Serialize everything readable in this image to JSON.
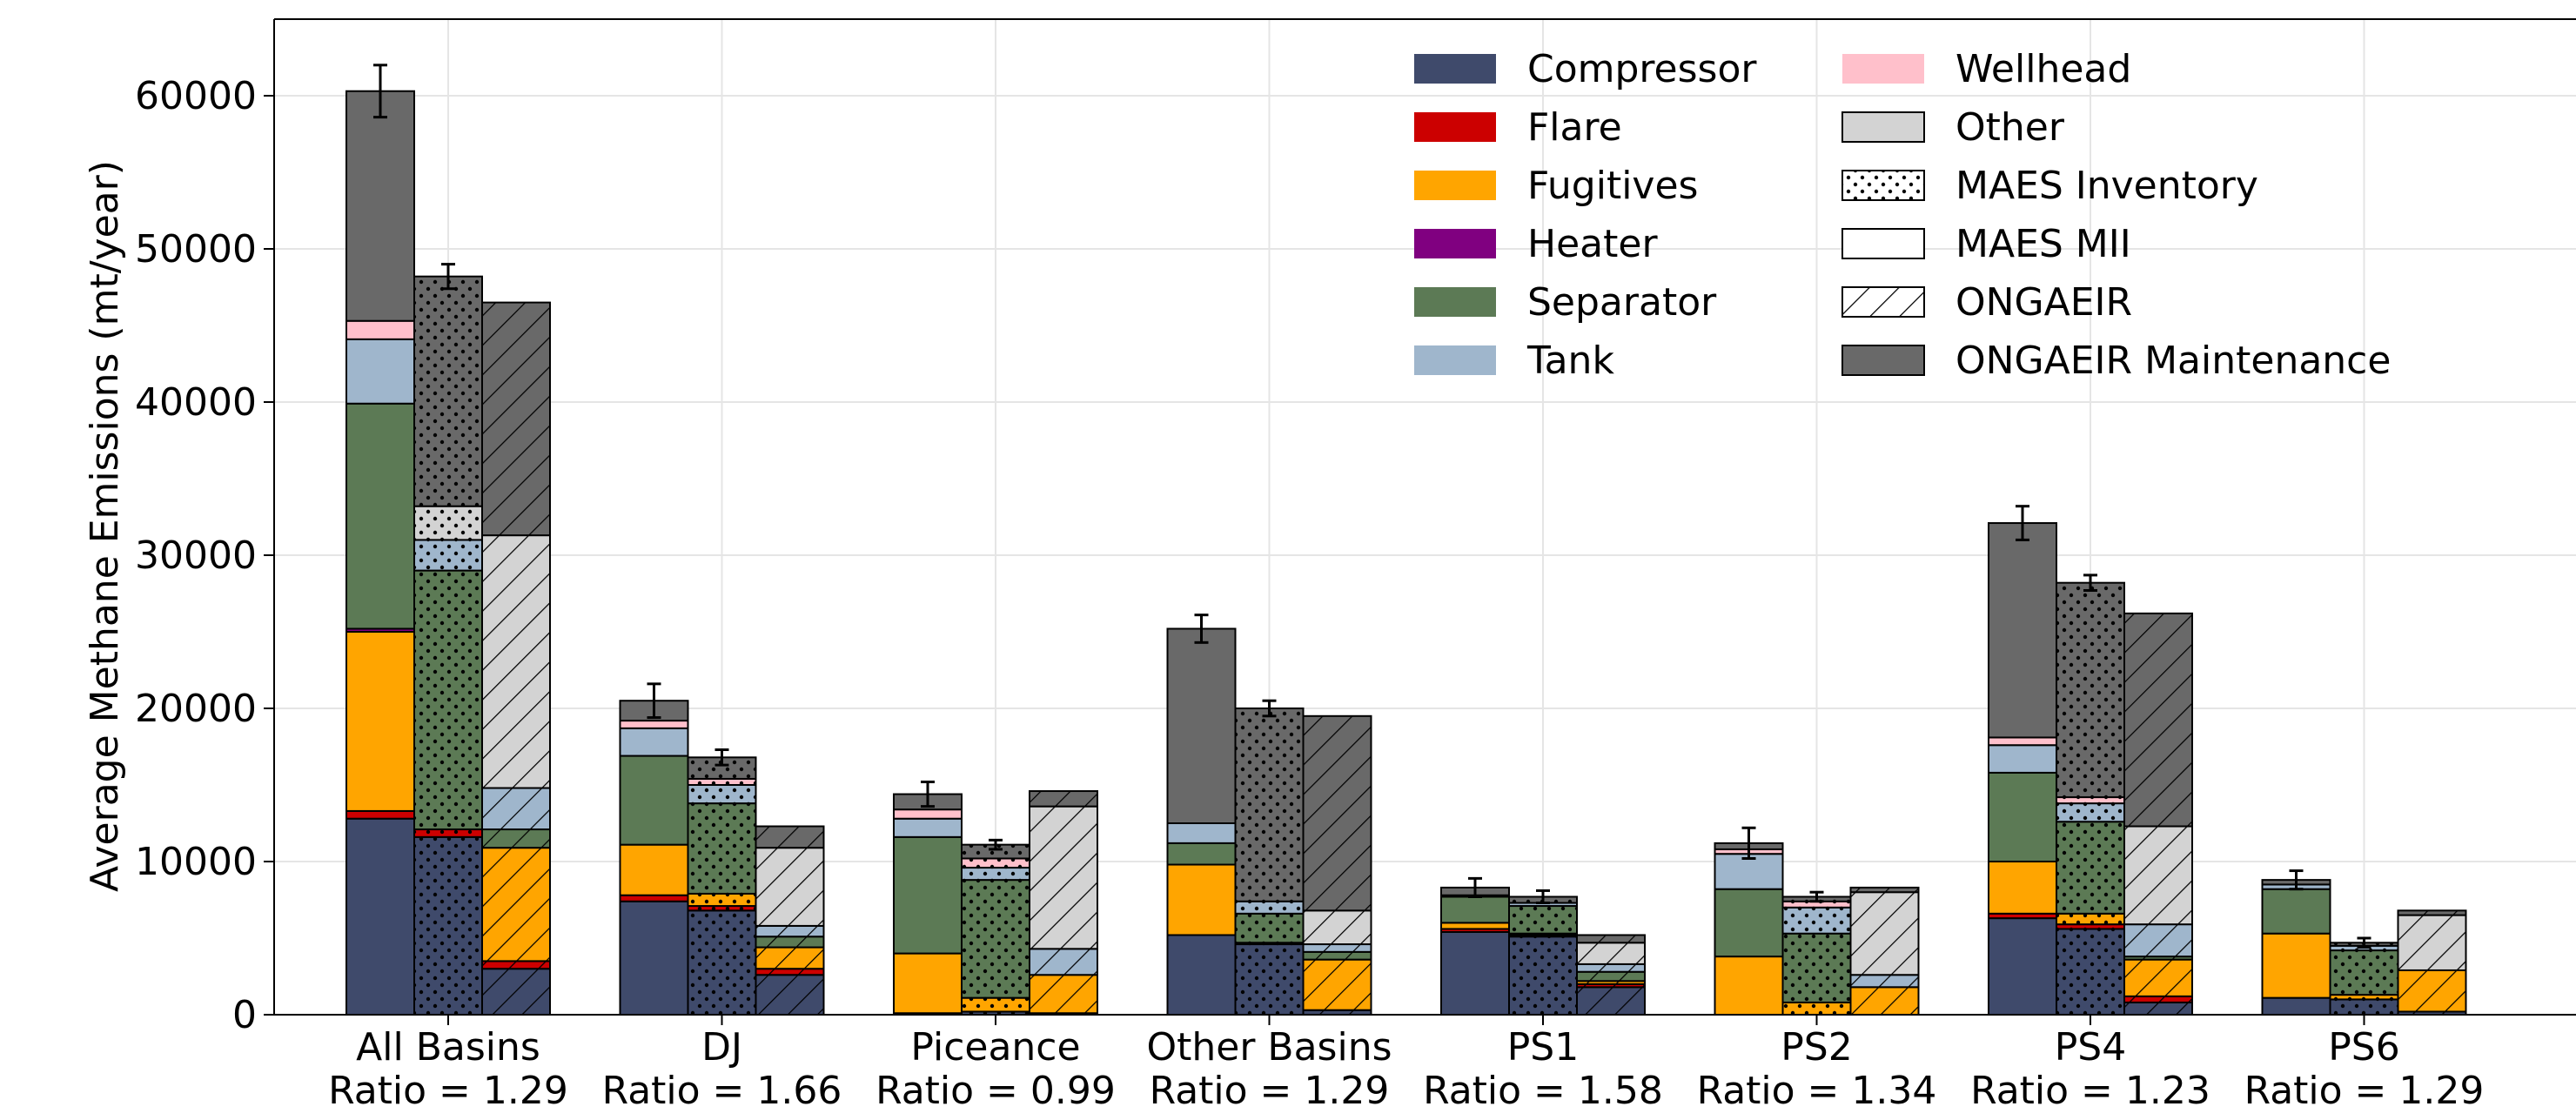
{
  "chart_data": {
    "type": "bar",
    "variant": "grouped-stacked",
    "ylabel": "Average Methane Emissions (mt/year)",
    "ylim": [
      0,
      65000
    ],
    "yticks": [
      0,
      10000,
      20000,
      30000,
      40000,
      50000,
      60000
    ],
    "grid": true,
    "legend_position": "top-right",
    "categories": [
      {
        "name": "All Basins",
        "ratio": "Ratio = 1.29"
      },
      {
        "name": "DJ",
        "ratio": "Ratio = 1.66"
      },
      {
        "name": "Piceance",
        "ratio": "Ratio = 0.99"
      },
      {
        "name": "Other Basins",
        "ratio": "Ratio = 1.29"
      },
      {
        "name": "PS1",
        "ratio": "Ratio = 1.58"
      },
      {
        "name": "PS2",
        "ratio": "Ratio = 1.34"
      },
      {
        "name": "PS4",
        "ratio": "Ratio = 1.23"
      },
      {
        "name": "PS6",
        "ratio": "Ratio = 1.29"
      }
    ],
    "equipment": [
      {
        "name": "Compressor",
        "color": "#3f4a6b"
      },
      {
        "name": "Flare",
        "color": "#cc0000"
      },
      {
        "name": "Fugitives",
        "color": "#ffa500"
      },
      {
        "name": "Heater",
        "color": "#800080"
      },
      {
        "name": "Separator",
        "color": "#5c7a55"
      },
      {
        "name": "Tank",
        "color": "#9fb6cc"
      },
      {
        "name": "Wellhead",
        "color": "#ffc0cb"
      },
      {
        "name": "Other",
        "color": "#d3d3d3"
      }
    ],
    "sources": [
      {
        "name": "MAES Inventory",
        "pattern": "dots",
        "total_color": "#696969"
      },
      {
        "name": "MAES MII",
        "pattern": "none",
        "total_color": "#696969"
      },
      {
        "name": "ONGAEIR",
        "pattern": "hatch",
        "total_color": "#696969"
      }
    ],
    "total_legend": "ONGAEIR Maintenance",
    "bars": [
      [
        {
          "source": "MAES MII",
          "values": [
            12800,
            500,
            11700,
            200,
            14700,
            4200,
            1200,
            0
          ],
          "top": 15000,
          "err": 1700
        },
        {
          "source": "MAES Inventory",
          "values": [
            11600,
            500,
            0,
            0,
            16900,
            2000,
            0,
            2200
          ],
          "top": 15000,
          "err": 800
        },
        {
          "source": "ONGAEIR",
          "values": [
            3000,
            500,
            7400,
            0,
            1200,
            2700,
            0,
            16500
          ],
          "top": 15200,
          "err": 0
        }
      ],
      [
        {
          "source": "MAES MII",
          "values": [
            7400,
            400,
            3300,
            0,
            5800,
            1800,
            500,
            0
          ],
          "top": 1300,
          "err": 1100
        },
        {
          "source": "MAES Inventory",
          "values": [
            6800,
            300,
            800,
            0,
            5900,
            1200,
            400,
            0
          ],
          "top": 1400,
          "err": 500
        },
        {
          "source": "ONGAEIR",
          "values": [
            2600,
            400,
            1400,
            0,
            700,
            700,
            0,
            5100
          ],
          "top": 1400,
          "err": 0
        }
      ],
      [
        {
          "source": "MAES MII",
          "values": [
            100,
            0,
            3900,
            0,
            7600,
            1200,
            600,
            0
          ],
          "top": 1000,
          "err": 800
        },
        {
          "source": "MAES Inventory",
          "values": [
            200,
            0,
            900,
            0,
            7700,
            800,
            600,
            0
          ],
          "top": 900,
          "err": 300
        },
        {
          "source": "ONGAEIR",
          "values": [
            100,
            0,
            2500,
            0,
            0,
            1700,
            0,
            9300
          ],
          "top": 1000,
          "err": 0
        }
      ],
      [
        {
          "source": "MAES MII",
          "values": [
            5200,
            0,
            4600,
            0,
            1400,
            1300,
            0,
            0
          ],
          "top": 12700,
          "err": 900
        },
        {
          "source": "MAES Inventory",
          "values": [
            4600,
            100,
            0,
            0,
            1900,
            800,
            0,
            0
          ],
          "top": 12600,
          "err": 500
        },
        {
          "source": "ONGAEIR",
          "values": [
            300,
            0,
            3300,
            0,
            500,
            500,
            0,
            2200
          ],
          "top": 12700,
          "err": 0
        }
      ],
      [
        {
          "source": "MAES MII",
          "values": [
            5400,
            200,
            400,
            0,
            1700,
            100,
            0,
            0
          ],
          "top": 500,
          "err": 600
        },
        {
          "source": "MAES Inventory",
          "values": [
            5100,
            100,
            100,
            0,
            1800,
            200,
            0,
            0
          ],
          "top": 400,
          "err": 400
        },
        {
          "source": "ONGAEIR",
          "values": [
            1800,
            200,
            200,
            0,
            600,
            500,
            0,
            1400
          ],
          "top": 500,
          "err": 0
        }
      ],
      [
        {
          "source": "MAES MII",
          "values": [
            0,
            0,
            3800,
            0,
            4400,
            2300,
            300,
            0
          ],
          "top": 400,
          "err": 1000
        },
        {
          "source": "MAES Inventory",
          "values": [
            0,
            0,
            800,
            0,
            4500,
            1700,
            400,
            0
          ],
          "top": 300,
          "err": 300
        },
        {
          "source": "ONGAEIR",
          "values": [
            0,
            0,
            1800,
            0,
            0,
            800,
            0,
            5400
          ],
          "top": 300,
          "err": 0
        }
      ],
      [
        {
          "source": "MAES MII",
          "values": [
            6300,
            300,
            3400,
            0,
            5800,
            1800,
            500,
            0
          ],
          "top": 14000,
          "err": 1100
        },
        {
          "source": "MAES Inventory",
          "values": [
            5600,
            300,
            700,
            0,
            6000,
            1200,
            400,
            0
          ],
          "top": 14000,
          "err": 500
        },
        {
          "source": "ONGAEIR",
          "values": [
            800,
            400,
            2400,
            0,
            200,
            2100,
            0,
            6400
          ],
          "top": 13900,
          "err": 0
        }
      ],
      [
        {
          "source": "MAES MII",
          "values": [
            1100,
            0,
            4200,
            0,
            2900,
            300,
            0,
            0
          ],
          "top": 300,
          "err": 600
        },
        {
          "source": "MAES Inventory",
          "values": [
            1000,
            0,
            300,
            0,
            2900,
            300,
            0,
            0
          ],
          "top": 200,
          "err": 300
        },
        {
          "source": "ONGAEIR",
          "values": [
            200,
            0,
            2700,
            0,
            0,
            0,
            0,
            3600
          ],
          "top": 300,
          "err": 0
        }
      ]
    ]
  }
}
